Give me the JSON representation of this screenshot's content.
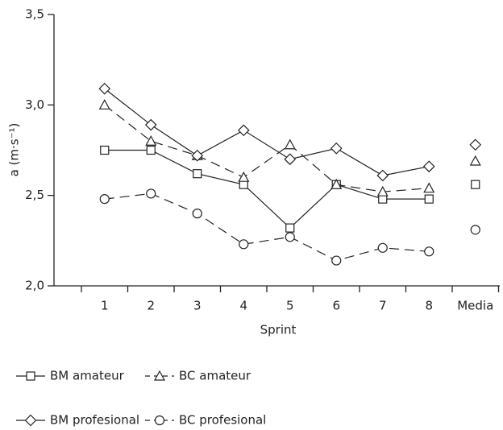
{
  "chart_data": {
    "type": "line",
    "y_label": "a (m·s⁻¹)",
    "x_label": "Sprint",
    "categories": [
      "1",
      "2",
      "3",
      "4",
      "5",
      "6",
      "7",
      "8"
    ],
    "mean_category": "Media",
    "ylim": [
      2.0,
      3.5
    ],
    "yticks": [
      {
        "value": 2.0,
        "label": "2,0"
      },
      {
        "value": 2.5,
        "label": "2,5"
      },
      {
        "value": 3.0,
        "label": "3,0"
      },
      {
        "value": 3.5,
        "label": "3,5"
      }
    ],
    "series": [
      {
        "name": "BM amateur",
        "color": "#222",
        "marker": "square",
        "dashed": false,
        "values": [
          2.75,
          2.75,
          2.62,
          2.56,
          2.32,
          2.56,
          2.48,
          2.48
        ],
        "mean": 2.56
      },
      {
        "name": "BC amateur",
        "color": "#222",
        "marker": "triangle",
        "dashed": true,
        "values": [
          3.0,
          2.8,
          2.72,
          2.6,
          2.78,
          2.56,
          2.52,
          2.54
        ],
        "mean": 2.69
      },
      {
        "name": "BM profesional",
        "color": "#222",
        "marker": "diamond",
        "dashed": false,
        "values": [
          3.09,
          2.89,
          2.72,
          2.86,
          2.7,
          2.76,
          2.61,
          2.66
        ],
        "mean": 2.78
      },
      {
        "name": "BC profesional",
        "color": "#222",
        "marker": "circle",
        "dashed": true,
        "values": [
          2.48,
          2.51,
          2.4,
          2.23,
          2.27,
          2.14,
          2.21,
          2.19
        ],
        "mean": 2.31
      }
    ]
  }
}
